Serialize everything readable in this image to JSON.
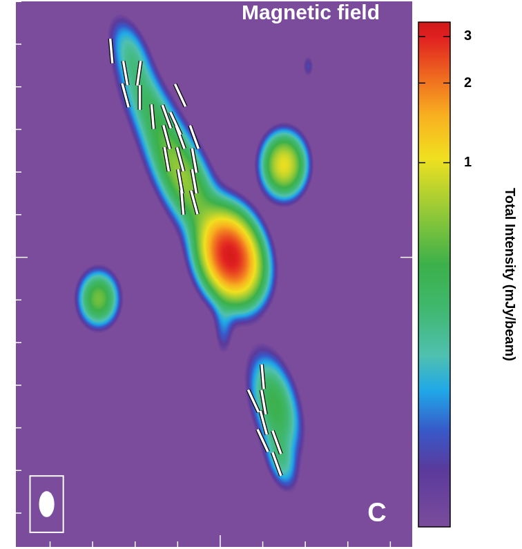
{
  "chart_data": {
    "type": "heatmap",
    "title": "Magnetic field",
    "annotations": [
      "C"
    ],
    "xlim": [
      -4.82,
      4.53
    ],
    "ylim": [
      -6.81,
      6.02
    ],
    "xticks": [
      -4,
      -3,
      -2,
      -1,
      0,
      1,
      2,
      3,
      4
    ],
    "yticks": [
      -6,
      -5,
      -4,
      -3,
      -2,
      -1,
      0,
      1,
      2,
      3,
      4,
      5,
      6
    ],
    "tick_labels": false,
    "grid": false,
    "components": [
      {
        "x": 0.24,
        "y": 0.03,
        "peak": 3.2,
        "sx": 0.37,
        "sy": 0.57,
        "pa": 15
      },
      {
        "x": -0.89,
        "y": 1.89,
        "peak": 0.65,
        "sx": 0.33,
        "sy": 0.9,
        "pa": 25
      },
      {
        "x": -1.7,
        "y": 3.59,
        "peak": 0.25,
        "sx": 0.3,
        "sy": 0.75,
        "pa": 25
      },
      {
        "x": -2.1,
        "y": 4.81,
        "peak": 0.18,
        "sx": 0.25,
        "sy": 0.55,
        "pa": 20
      },
      {
        "x": 1.5,
        "y": 2.17,
        "peak": 1.0,
        "sx": 0.28,
        "sy": 0.4,
        "pa": 0
      },
      {
        "x": -2.86,
        "y": -0.97,
        "peak": 0.55,
        "sx": 0.26,
        "sy": 0.36,
        "pa": 0
      },
      {
        "x": 1.29,
        "y": -3.45,
        "peak": 0.4,
        "sx": 0.3,
        "sy": 0.7,
        "pa": 15
      },
      {
        "x": 1.42,
        "y": -4.74,
        "peak": 0.2,
        "sx": 0.2,
        "sy": 0.45,
        "pa": 15
      },
      {
        "x": 0.08,
        "y": -1.59,
        "peak": 0.1,
        "sx": 0.15,
        "sy": 0.5,
        "pa": 0
      },
      {
        "x": 2.07,
        "y": 4.48,
        "peak": 0.08,
        "sx": 0.1,
        "sy": 0.2,
        "pa": 0
      }
    ],
    "magnetic_field_vectors": [
      {
        "x": -2.56,
        "y": 4.84,
        "angle": 5
      },
      {
        "x": -2.23,
        "y": 4.32,
        "angle": 10
      },
      {
        "x": -1.91,
        "y": 4.32,
        "angle": -8
      },
      {
        "x": -2.23,
        "y": 3.8,
        "angle": 15
      },
      {
        "x": -1.89,
        "y": 3.75,
        "angle": 0
      },
      {
        "x": -0.94,
        "y": 3.8,
        "angle": 25
      },
      {
        "x": -1.59,
        "y": 3.3,
        "angle": 5
      },
      {
        "x": -1.26,
        "y": 3.3,
        "angle": 20
      },
      {
        "x": -1.05,
        "y": 3.14,
        "angle": 25
      },
      {
        "x": -1.26,
        "y": 2.82,
        "angle": 15
      },
      {
        "x": -0.94,
        "y": 2.82,
        "angle": 20
      },
      {
        "x": -0.61,
        "y": 2.82,
        "angle": 20
      },
      {
        "x": -1.26,
        "y": 2.3,
        "angle": 10
      },
      {
        "x": -0.94,
        "y": 2.3,
        "angle": 15
      },
      {
        "x": -0.61,
        "y": 2.27,
        "angle": 10
      },
      {
        "x": -0.94,
        "y": 1.78,
        "angle": 10
      },
      {
        "x": -0.61,
        "y": 1.78,
        "angle": 10
      },
      {
        "x": -0.89,
        "y": 1.29,
        "angle": 5
      },
      {
        "x": -0.61,
        "y": 1.29,
        "angle": 15
      },
      {
        "x": 1.0,
        "y": -2.8,
        "angle": 5
      },
      {
        "x": 0.78,
        "y": -3.37,
        "angle": 25
      },
      {
        "x": 1.02,
        "y": -3.4,
        "angle": 10
      },
      {
        "x": 1.02,
        "y": -3.88,
        "angle": 15
      },
      {
        "x": 1.0,
        "y": -4.3,
        "angle": 25
      },
      {
        "x": 1.33,
        "y": -4.34,
        "angle": 20
      },
      {
        "x": 1.33,
        "y": -4.85,
        "angle": 20
      }
    ],
    "beam": {
      "x": -4.08,
      "y": -5.79,
      "major": 0.61,
      "minor": 0.36
    },
    "colorbar": {
      "label": "Total Intensity (mJy/beam)",
      "range": [
        0.042,
        3.4
      ],
      "ticks": [
        1,
        2,
        3
      ],
      "log": true
    }
  }
}
